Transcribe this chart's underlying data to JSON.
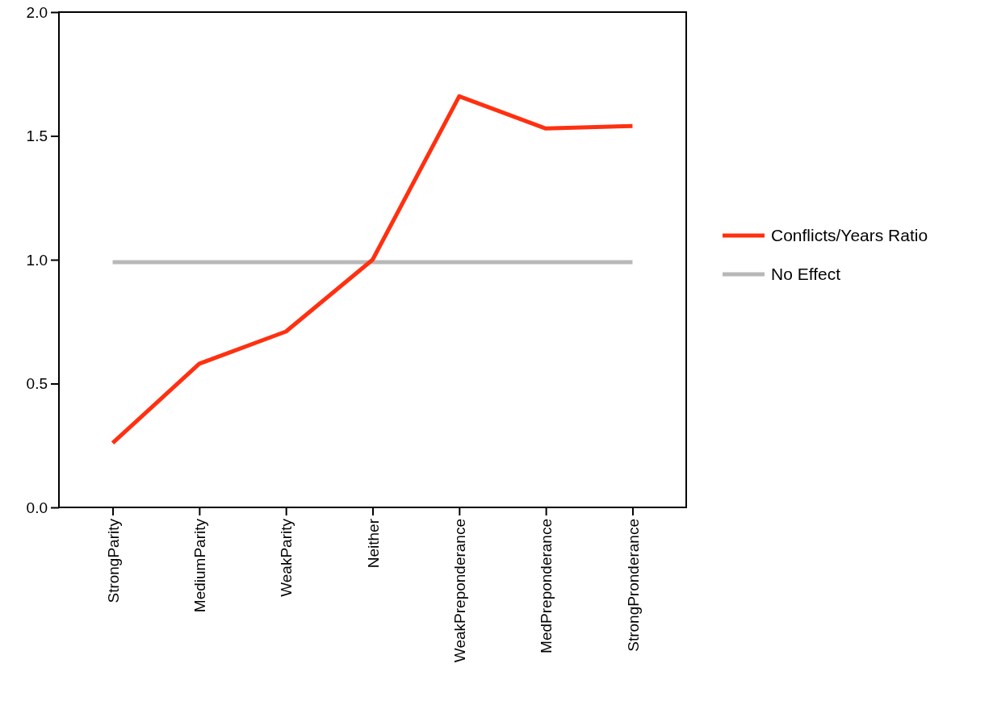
{
  "chart_data": {
    "type": "line",
    "categories": [
      "StrongParity",
      "MediumParity",
      "WeakParity",
      "Neither",
      "WeakPreponderance",
      "MedPreponderance",
      "StrongPronderance"
    ],
    "series": [
      {
        "name": "Conflicts/Years  Ratio",
        "color": "#ff3010",
        "values": [
          0.26,
          0.58,
          0.71,
          1.0,
          1.66,
          1.53,
          1.54
        ]
      },
      {
        "name": "No Effect",
        "color": "#b8b8b8",
        "values": [
          0.99,
          0.99,
          0.99,
          0.99,
          0.99,
          0.99,
          0.99
        ]
      }
    ],
    "ylim": [
      0,
      2
    ],
    "yticks": [
      {
        "value": 0,
        "label": "0.0"
      },
      {
        "value": 0.5,
        "label": "0.5"
      },
      {
        "value": 1,
        "label": "1.0"
      },
      {
        "value": 1.5,
        "label": "1.5"
      },
      {
        "value": 2,
        "label": "2.0"
      }
    ],
    "grid": false,
    "legend": "right",
    "marker": "none",
    "line_style": "solid"
  }
}
